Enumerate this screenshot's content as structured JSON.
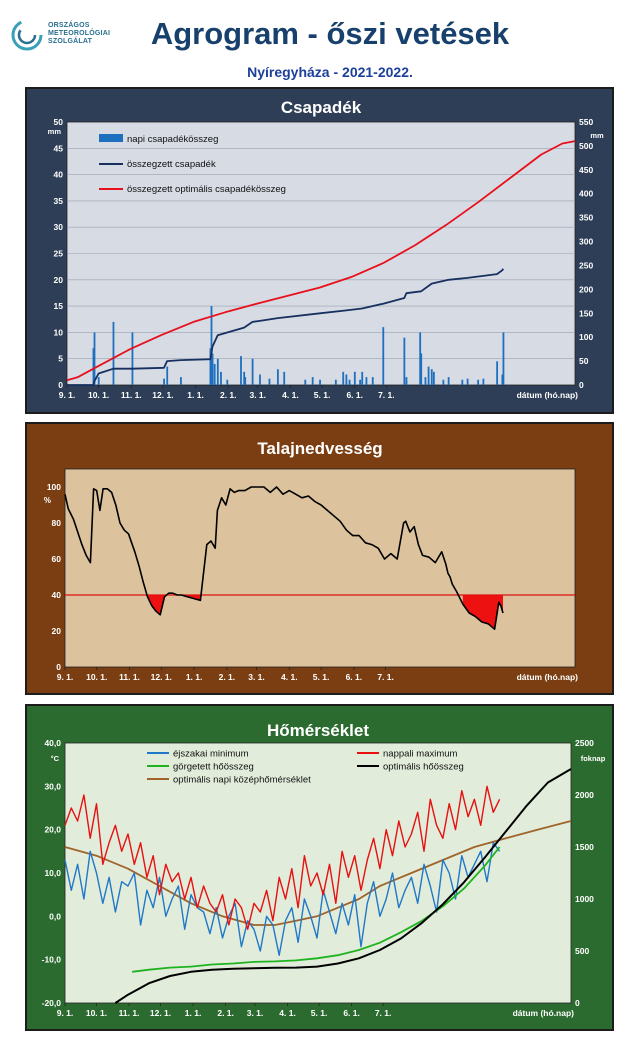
{
  "logo": {
    "lines": [
      "ORSZÁGOS",
      "METEOROLÓGIAI",
      "SZOLGÁLAT"
    ]
  },
  "title": "Agrogram - őszi vetések",
  "subtitle": "Nyíregyháza - 2021-2022.",
  "x_axis": {
    "tick_labels": [
      "9. 1.",
      "10. 1.",
      "11. 1.",
      "12. 1.",
      "1. 1.",
      "2. 1.",
      "3. 1.",
      "4. 1.",
      "5. 1.",
      "6. 1.",
      "7. 1."
    ],
    "unit_label": "dátum (hó.nap)"
  },
  "colors": {
    "panel1_bg": "#2e3e56",
    "panel1_plot": "#d6dbe4",
    "panel2_bg": "#7a3e12",
    "panel2_plot": "#dcc39d",
    "panel3_bg": "#2c6b2f",
    "panel3_plot": "#e1ecda"
  },
  "chart_data": [
    {
      "type": "bar",
      "title": "Csapadék",
      "y_left": {
        "label": "mm",
        "ylim": [
          0,
          50
        ],
        "ticks": [
          "0",
          "5",
          "10",
          "15",
          "20",
          "25",
          "30",
          "35",
          "40",
          "45",
          "50"
        ]
      },
      "y_right": {
        "label": "mm",
        "ylim": [
          0,
          550
        ],
        "ticks": [
          "0",
          "50",
          "100",
          "150",
          "200",
          "250",
          "300",
          "350",
          "400",
          "450",
          "500",
          "550"
        ]
      },
      "grid": true,
      "legend": [
        "napi csapadékösszeg",
        "összegzett csapadék",
        "összegzett optimális csapadékösszeg"
      ],
      "series": [
        {
          "name": "napi csapadékösszeg",
          "axis": "left",
          "color": "#1f6fbf",
          "days": [
            25,
            26,
            30,
            44,
            62,
            92,
            95,
            108,
            136,
            137,
            138,
            140,
            143,
            146,
            152,
            165,
            168,
            169,
            176,
            183,
            192,
            200,
            206,
            226,
            233,
            240,
            255,
            262,
            265,
            268,
            273,
            278,
            280,
            284,
            290,
            300,
            320,
            322,
            335,
            336,
            340,
            343,
            346,
            348,
            357,
            362,
            375,
            380,
            390,
            395,
            408,
            413,
            414
          ],
          "values": [
            7,
            10,
            1.5,
            12,
            10,
            1.2,
            3.5,
            1.5,
            7,
            15,
            6,
            4,
            5,
            2.5,
            1,
            5.5,
            2.5,
            1.5,
            5,
            2,
            1.2,
            3,
            2.5,
            1,
            1.5,
            1,
            1,
            2.5,
            2,
            1,
            2.5,
            1,
            2.5,
            1.5,
            1.5,
            11,
            9,
            1.5,
            10,
            6,
            1.5,
            3.5,
            3,
            2.5,
            1,
            1.5,
            1,
            1.2,
            1,
            1.2,
            4.5,
            2,
            10
          ]
        },
        {
          "name": "összegzett csapadék",
          "axis": "right",
          "color": "#17305f",
          "x": [
            0,
            25,
            26,
            30,
            44,
            62,
            92,
            95,
            108,
            136,
            137,
            138,
            143,
            168,
            176,
            183,
            200,
            240,
            265,
            280,
            300,
            320,
            322,
            336,
            346,
            362,
            380,
            408,
            413,
            414
          ],
          "y": [
            0,
            0,
            8,
            24,
            34,
            34,
            36,
            50,
            52,
            54,
            66,
            80,
            104,
            120,
            132,
            134,
            140,
            150,
            156,
            160,
            170,
            182,
            192,
            196,
            212,
            220,
            224,
            232,
            240,
            243
          ]
        },
        {
          "name": "összegzett optimális csapadékösszeg",
          "axis": "right",
          "color": "#e8101b",
          "x": [
            0,
            10,
            30,
            60,
            90,
            120,
            150,
            180,
            210,
            240,
            270,
            300,
            330,
            360,
            390,
            420,
            450,
            470,
            482
          ],
          "y": [
            10,
            16,
            40,
            75,
            105,
            132,
            152,
            170,
            187,
            204,
            226,
            255,
            292,
            335,
            382,
            432,
            482,
            505,
            510
          ]
        }
      ]
    },
    {
      "type": "line",
      "title": "Talajnedvesség",
      "y": {
        "label": "%",
        "ylim": [
          0,
          110
        ],
        "ticks": [
          "0",
          "20",
          "40",
          "60",
          "80",
          "100"
        ]
      },
      "threshold": 40,
      "grid": false,
      "series": [
        {
          "name": "",
          "color": "#000000",
          "x": [
            0,
            3,
            8,
            12,
            16,
            20,
            24,
            27,
            30,
            33,
            36,
            40,
            44,
            48,
            52,
            56,
            60,
            66,
            70,
            74,
            78,
            82,
            86,
            90,
            94,
            98,
            102,
            106,
            110,
            116,
            122,
            128,
            134,
            138,
            140,
            142,
            144,
            148,
            152,
            156,
            160,
            164,
            170,
            176,
            182,
            188,
            194,
            200,
            206,
            212,
            218,
            224,
            230,
            236,
            242,
            248,
            254,
            260,
            266,
            272,
            278,
            284,
            290,
            296,
            302,
            308,
            314,
            320,
            322,
            326,
            330,
            334,
            338,
            344,
            350,
            356,
            360,
            362,
            364,
            366,
            370,
            376,
            382,
            388,
            394,
            400,
            406,
            410,
            412,
            414
          ],
          "y": [
            96,
            88,
            82,
            75,
            68,
            62,
            58,
            99,
            98,
            87,
            99,
            99,
            97,
            90,
            80,
            76,
            74,
            64,
            56,
            47,
            39,
            34,
            31,
            29,
            39,
            41,
            41,
            40,
            40,
            39,
            38,
            37,
            68,
            70,
            68,
            66,
            87,
            94,
            90,
            99,
            97,
            98,
            98,
            100,
            100,
            100,
            97,
            100,
            96,
            98,
            96,
            94,
            95,
            92,
            90,
            87,
            84,
            81,
            76,
            73,
            73,
            69,
            68,
            66,
            60,
            63,
            60,
            80,
            81,
            75,
            78,
            68,
            62,
            61,
            58,
            64,
            57,
            52,
            50,
            46,
            42,
            35,
            30,
            28,
            25,
            24,
            21,
            36,
            34,
            30
          ]
        }
      ]
    },
    {
      "type": "line",
      "title": "Hőmérséklet",
      "y_left": {
        "label": "°C",
        "ylim": [
          -20,
          40
        ],
        "ticks": [
          "-20,0",
          "-10,0",
          "0,0",
          "10,0",
          "20,0",
          "30,0",
          "40,0"
        ]
      },
      "y_right": {
        "label": "foknap",
        "ylim": [
          0,
          2500
        ],
        "ticks": [
          "0",
          "500",
          "1000",
          "1500",
          "2000",
          "2500"
        ]
      },
      "grid": false,
      "legend": [
        "éjszakai minimum",
        "nappali maximum",
        "görgetett hőösszeg",
        "optimális hőösszeg",
        "optimális napi középhőmérséklet"
      ],
      "series": [
        {
          "name": "éjszakai minimum",
          "axis": "left",
          "color": "#1f78c8",
          "x": [
            0,
            6,
            12,
            18,
            24,
            30,
            36,
            42,
            48,
            54,
            60,
            66,
            72,
            78,
            84,
            90,
            96,
            102,
            108,
            114,
            120,
            126,
            132,
            138,
            144,
            150,
            156,
            162,
            168,
            174,
            180,
            186,
            192,
            198,
            204,
            210,
            216,
            222,
            228,
            234,
            240,
            246,
            252,
            258,
            264,
            270,
            276,
            282,
            288,
            294,
            300,
            306,
            312,
            318,
            324,
            330,
            336,
            342,
            348,
            354,
            360,
            366,
            372,
            378,
            384,
            390,
            396,
            402,
            408,
            414
          ],
          "y": [
            13,
            6,
            12,
            4,
            15,
            10,
            3,
            9,
            1,
            8,
            7,
            10,
            -2,
            6,
            2,
            9,
            0,
            4,
            7,
            -3,
            5,
            2,
            1,
            -4,
            2,
            -5,
            0,
            3,
            -7,
            -1,
            -3,
            -8,
            0,
            -2,
            -9,
            -1,
            2,
            -6,
            4,
            0,
            -5,
            6,
            1,
            -4,
            3,
            -2,
            5,
            -7,
            3,
            8,
            0,
            4,
            10,
            2,
            6,
            9,
            3,
            12,
            7,
            1,
            13,
            10,
            4,
            14,
            9,
            12,
            15,
            8,
            17,
            15
          ]
        },
        {
          "name": "nappali maximum",
          "axis": "left",
          "color": "#e81010",
          "x": [
            0,
            6,
            12,
            18,
            24,
            30,
            36,
            42,
            48,
            54,
            60,
            66,
            72,
            78,
            84,
            90,
            96,
            102,
            108,
            114,
            120,
            126,
            132,
            138,
            144,
            150,
            156,
            162,
            168,
            174,
            180,
            186,
            192,
            198,
            204,
            210,
            216,
            222,
            228,
            234,
            240,
            246,
            252,
            258,
            264,
            270,
            276,
            282,
            288,
            294,
            300,
            306,
            312,
            318,
            324,
            330,
            336,
            342,
            348,
            354,
            360,
            366,
            372,
            378,
            384,
            390,
            396,
            402,
            408,
            414
          ],
          "y": [
            21,
            25,
            22,
            28,
            18,
            26,
            12,
            17,
            21,
            15,
            19,
            12,
            17,
            9,
            14,
            5,
            12,
            8,
            10,
            4,
            9,
            2,
            7,
            3,
            1,
            5,
            -2,
            4,
            2,
            -3,
            3,
            1,
            6,
            -1,
            9,
            4,
            11,
            2,
            14,
            7,
            10,
            5,
            12,
            3,
            15,
            9,
            14,
            6,
            13,
            18,
            11,
            20,
            14,
            22,
            16,
            19,
            24,
            15,
            27,
            21,
            18,
            26,
            20,
            29,
            23,
            27,
            21,
            30,
            24,
            27
          ]
        },
        {
          "name": "görgetett hőösszeg",
          "axis": "right",
          "color": "#1fb31f",
          "x": [
            64,
            80,
            100,
            120,
            140,
            160,
            180,
            200,
            220,
            240,
            260,
            280,
            300,
            320,
            340,
            360,
            380,
            400,
            414
          ],
          "y": [
            300,
            320,
            340,
            350,
            370,
            380,
            395,
            400,
            410,
            430,
            460,
            510,
            580,
            680,
            790,
            930,
            1100,
            1320,
            1500
          ]
        },
        {
          "name": "optimális hőösszeg",
          "axis": "right",
          "color": "#000000",
          "x": [
            48,
            60,
            80,
            100,
            120,
            140,
            160,
            180,
            200,
            220,
            240,
            260,
            280,
            300,
            320,
            340,
            360,
            380,
            400,
            420,
            440,
            460,
            482
          ],
          "y": [
            0,
            80,
            190,
            260,
            300,
            320,
            330,
            335,
            338,
            340,
            350,
            380,
            430,
            510,
            620,
            770,
            950,
            1160,
            1400,
            1650,
            1900,
            2120,
            2250
          ]
        },
        {
          "name": "optimális napi középhőmérséklet",
          "axis": "left",
          "color": "#a0642a",
          "x": [
            0,
            30,
            60,
            90,
            120,
            150,
            180,
            200,
            220,
            240,
            260,
            280,
            300,
            330,
            360,
            390,
            420,
            450,
            482
          ],
          "y": [
            16,
            14,
            11,
            7,
            3,
            0,
            -2,
            -2,
            -1,
            0,
            2,
            4,
            7,
            10,
            13,
            16,
            18,
            20,
            22
          ]
        }
      ]
    }
  ]
}
